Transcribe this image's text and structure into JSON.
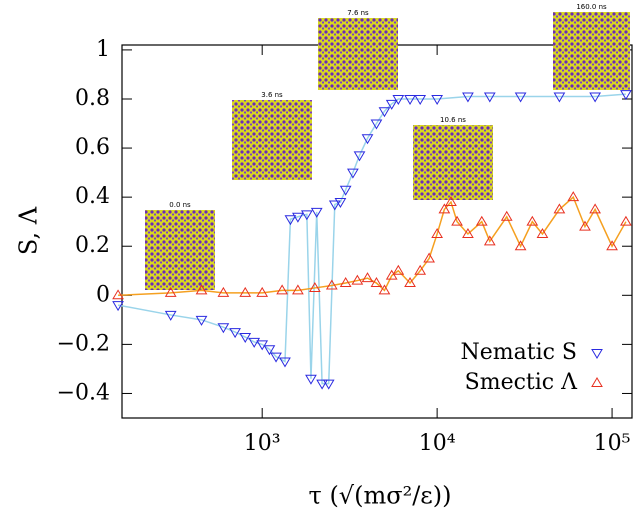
{
  "chart_data": {
    "type": "line",
    "xlabel": "τ (√(mσ²/ε))",
    "ylabel": "S, Λ",
    "xscale": "log",
    "xlim": [
      158,
      130000
    ],
    "ylim": [
      -0.5,
      1.02
    ],
    "xticks": [
      {
        "value": 1000,
        "label": "10³"
      },
      {
        "value": 10000,
        "label": "10⁴"
      },
      {
        "value": 100000,
        "label": "10⁵"
      }
    ],
    "yticks": [
      {
        "value": -0.4,
        "label": "−0.4"
      },
      {
        "value": -0.2,
        "label": "−0.2"
      },
      0,
      0.2,
      0.4,
      0.6,
      0.8,
      1
    ],
    "legend": "lower right",
    "annotations": [
      "0.0 ns",
      "3.6 ns",
      "7.6 ns",
      "10.6 ns",
      "160.0 ns"
    ],
    "series": [
      {
        "name": "Nematic S",
        "color": "#2a2ae0",
        "line_color": "#9ad4ea",
        "marker": "triangle-down",
        "x": [
          150,
          300,
          450,
          600,
          700,
          800,
          900,
          1000,
          1100,
          1200,
          1350,
          1450,
          1600,
          1800,
          1900,
          2050,
          2200,
          2400,
          2600,
          2800,
          3000,
          3300,
          3600,
          4000,
          4500,
          5000,
          5500,
          6000,
          7000,
          8000,
          10000,
          15000,
          20000,
          30000,
          50000,
          80000,
          120000
        ],
        "values": [
          -0.04,
          -0.08,
          -0.1,
          -0.13,
          -0.15,
          -0.17,
          -0.19,
          -0.2,
          -0.22,
          -0.25,
          -0.27,
          0.31,
          0.32,
          0.33,
          -0.34,
          0.34,
          -0.36,
          -0.36,
          0.37,
          0.38,
          0.43,
          0.5,
          0.57,
          0.64,
          0.7,
          0.75,
          0.78,
          0.8,
          0.8,
          0.8,
          0.8,
          0.81,
          0.81,
          0.81,
          0.81,
          0.81,
          0.82
        ]
      },
      {
        "name": "Smectic Λ",
        "color": "#e83020",
        "line_color": "#f5a020",
        "marker": "triangle-up",
        "x": [
          150,
          300,
          450,
          600,
          800,
          1000,
          1300,
          1600,
          2000,
          2500,
          3000,
          3500,
          4000,
          4500,
          5000,
          5500,
          6000,
          7000,
          8000,
          9000,
          10000,
          11000,
          12000,
          13000,
          15000,
          18000,
          20000,
          25000,
          30000,
          35000,
          40000,
          50000,
          60000,
          70000,
          80000,
          100000,
          120000
        ],
        "values": [
          0,
          0.01,
          0.02,
          0.01,
          0.01,
          0.01,
          0.02,
          0.02,
          0.03,
          0.04,
          0.05,
          0.06,
          0.07,
          0.05,
          0.02,
          0.08,
          0.1,
          0.05,
          0.1,
          0.15,
          0.25,
          0.35,
          0.38,
          0.3,
          0.25,
          0.3,
          0.22,
          0.32,
          0.2,
          0.3,
          0.25,
          0.35,
          0.4,
          0.28,
          0.35,
          0.2,
          0.3
        ]
      }
    ]
  }
}
